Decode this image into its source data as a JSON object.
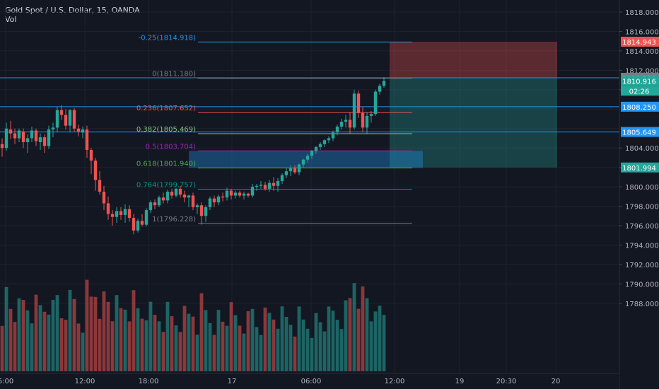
{
  "header": {
    "title": "Gold Spot / U.S. Dollar, 15, OANDA",
    "vol_label": "Vol"
  },
  "colors": {
    "background": "#131722",
    "grid": "#1e222d",
    "axis_text": "#b2b5be",
    "up": "#26a69a",
    "down": "#ef5350",
    "hline": "#2196f3"
  },
  "price_axis": {
    "ticks": [
      "1818.000",
      "1816.000",
      "1814.000",
      "1812.000",
      "1810.000",
      "1804.000",
      "1802.000",
      "1800.000",
      "1798.000",
      "1796.000",
      "1794.000",
      "1792.000",
      "1790.000",
      "1788.000"
    ],
    "badges": [
      {
        "label": "1814.943",
        "color": "#ef5350"
      },
      {
        "label": "1811.229",
        "color": "#787b86"
      },
      {
        "label": "1810.916",
        "color": "#26a69a"
      },
      {
        "label": "02:26",
        "color": "#26a69a"
      },
      {
        "label": "1808.250",
        "color": "#2196f3"
      },
      {
        "label": "1805.649",
        "color": "#2196f3"
      },
      {
        "label": "1801.994",
        "color": "#26a69a"
      }
    ]
  },
  "time_axis": {
    "ticks": [
      "6:00",
      "12:00",
      "18:00",
      "17",
      "06:00",
      "12:00",
      "19",
      "20:30",
      "20"
    ]
  },
  "fib_levels": [
    {
      "label": "-0.25(1814.918)",
      "color": "#2196f3"
    },
    {
      "label": "0(1811.180)",
      "color": "#787b86"
    },
    {
      "label": "0.236(1807.652)",
      "color": "#ef5350"
    },
    {
      "label": "0.382(1805.469)",
      "color": "#81c784"
    },
    {
      "label": "0.5(1803.704)",
      "color": "#9c27b0"
    },
    {
      "label": "0.618(1801.940)",
      "color": "#4caf50"
    },
    {
      "label": "0.764(1799.757)",
      "color": "#009688"
    },
    {
      "label": "1(1796.228)",
      "color": "#787b86"
    }
  ]
}
